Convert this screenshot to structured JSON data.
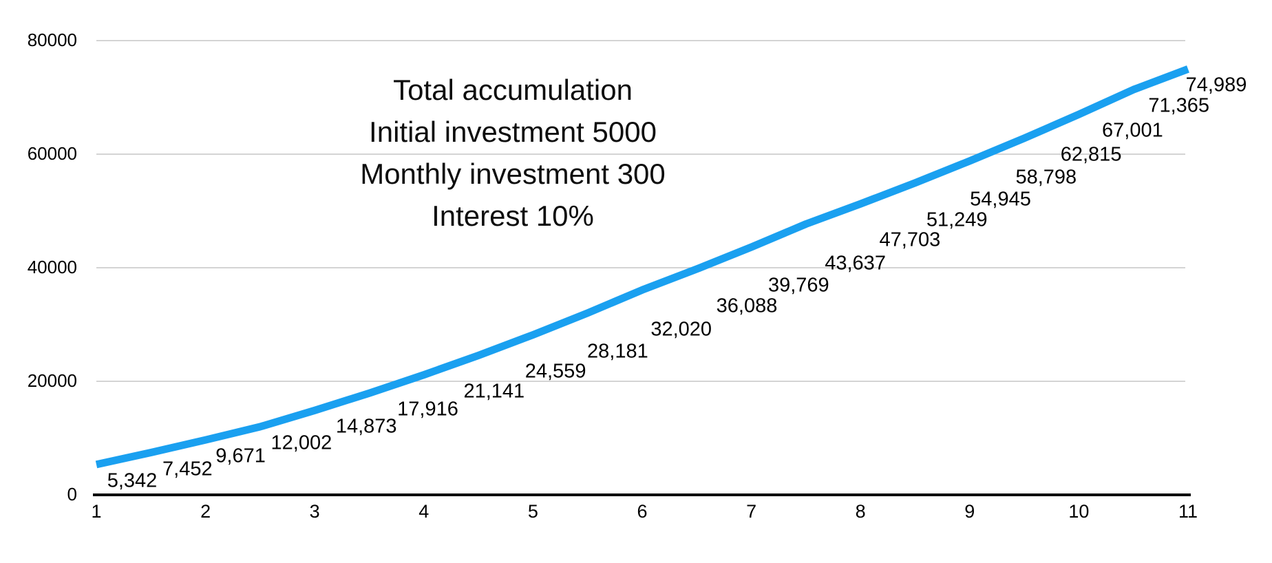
{
  "chart_data": {
    "type": "line",
    "title_lines": [
      "Total accumulation",
      "Initial investment 5000",
      "Monthly investment 300",
      "Interest 10%"
    ],
    "x": [
      1,
      1.5,
      2,
      2.5,
      3,
      3.5,
      4,
      4.5,
      5,
      5.5,
      6,
      6.5,
      7,
      7.5,
      8,
      8.5,
      9,
      9.5,
      10,
      10.5,
      11
    ],
    "values": [
      5342,
      7452,
      9671,
      12002,
      14873,
      17916,
      21141,
      24559,
      28181,
      32020,
      36088,
      39769,
      43637,
      47703,
      51249,
      54945,
      58798,
      62815,
      67001,
      71365,
      74989
    ],
    "point_labels": [
      "5,342",
      "7,452",
      "9,671",
      "12,002",
      "14,873",
      "17,916",
      "21,141",
      "24,559",
      "28,181",
      "32,020",
      "36,088",
      "39,769",
      "43,637",
      "47,703",
      "51,249",
      "54,945",
      "58,798",
      "62,815",
      "67,001",
      "71,365",
      "74,989"
    ],
    "x_tick_values": [
      1,
      2,
      3,
      4,
      5,
      6,
      7,
      8,
      9,
      10,
      11
    ],
    "x_tick_labels": [
      "1",
      "2",
      "3",
      "4",
      "5",
      "6",
      "7",
      "8",
      "9",
      "10",
      "11"
    ],
    "y_tick_values": [
      0,
      20000,
      40000,
      60000,
      80000
    ],
    "y_tick_labels": [
      "0",
      "20000",
      "40000",
      "60000",
      "80000"
    ],
    "xlim": [
      1,
      11
    ],
    "ylim": [
      0,
      80000
    ],
    "grid": "horizontal",
    "legend": "none",
    "colors": {
      "line": "#1AA0F0",
      "grid": "#c6c6c6",
      "axis": "#000000",
      "text": "#000000"
    },
    "label_dx": [
      52,
      53,
      51,
      60,
      75,
      85,
      102,
      112,
      123,
      136,
      152,
      148,
      151,
      151,
      140,
      124,
      111,
      97,
      78,
      66,
      41
    ],
    "label_dy": 24
  }
}
